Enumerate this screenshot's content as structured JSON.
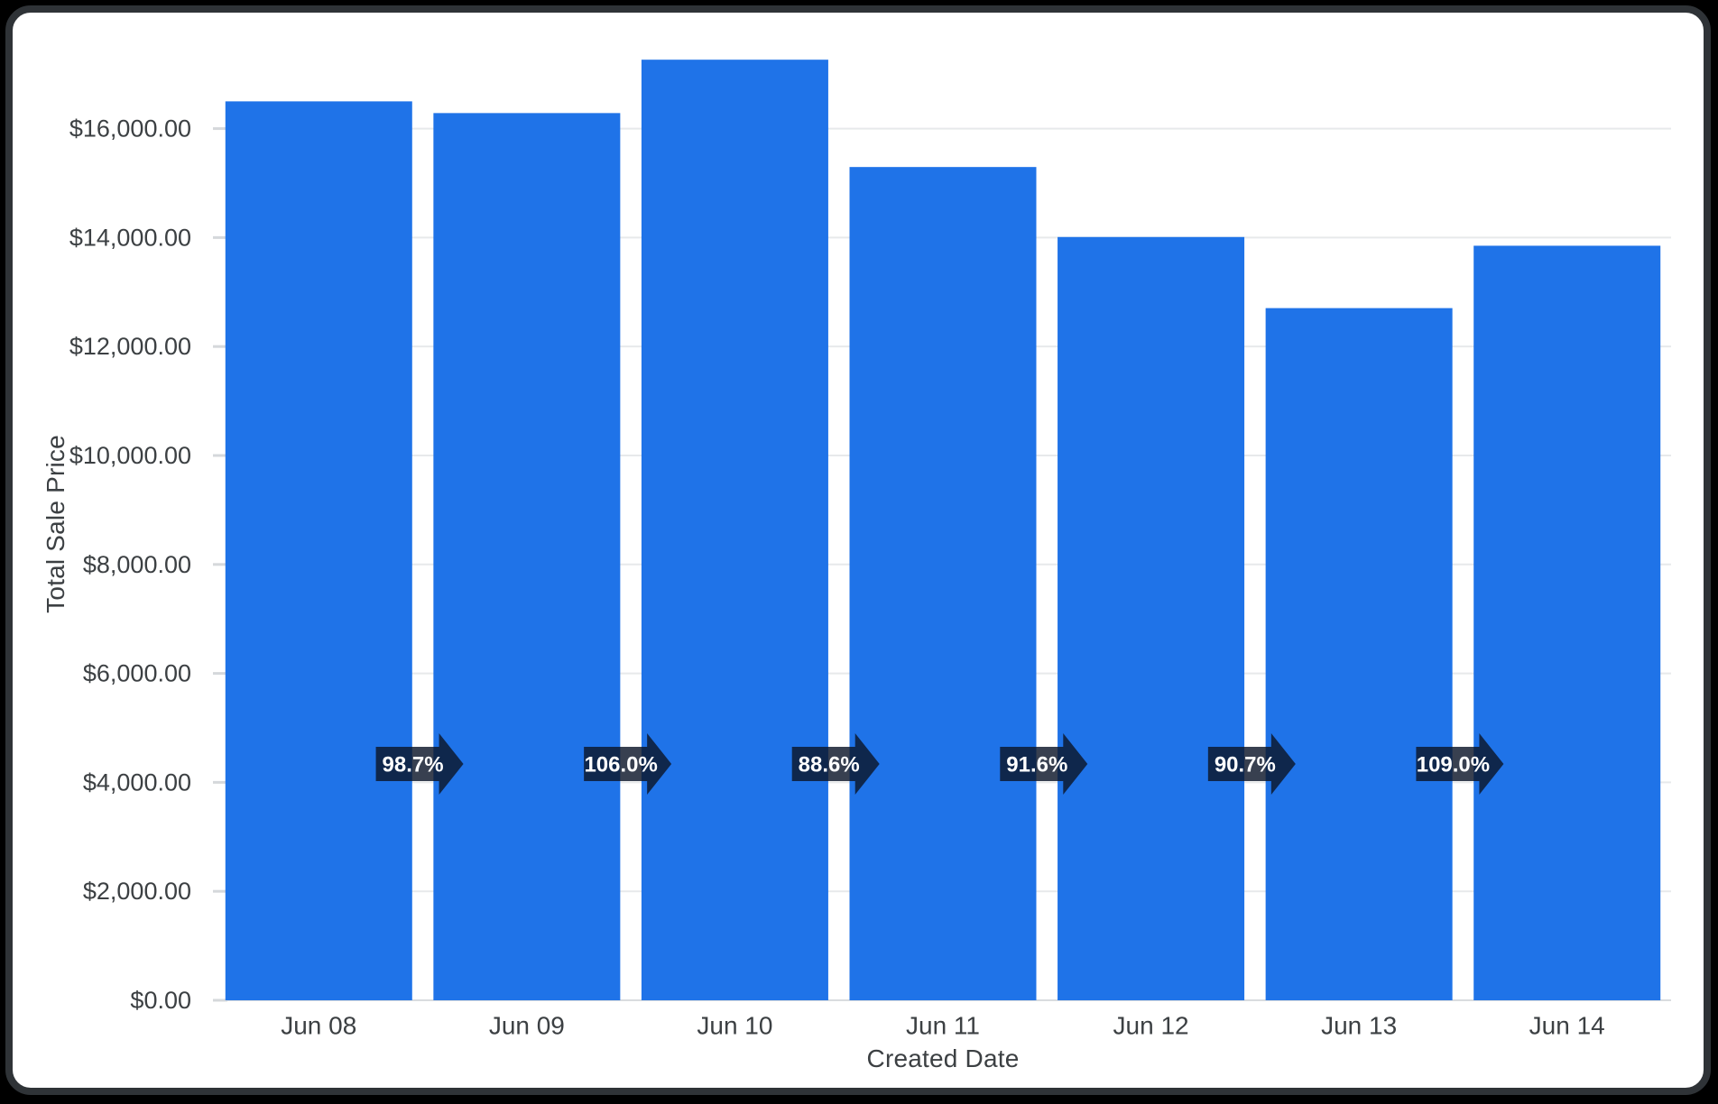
{
  "page": {
    "background": "#000000"
  },
  "card": {
    "background": "#ffffff",
    "border_color": "#2f3337"
  },
  "chart_data": {
    "type": "bar",
    "title": "",
    "xlabel": "Created Date",
    "ylabel": "Total Sale Price",
    "categories": [
      "Jun 08",
      "Jun 09",
      "Jun 10",
      "Jun 11",
      "Jun 12",
      "Jun 13",
      "Jun 14"
    ],
    "series": [
      {
        "name": "Total Sale Price",
        "values": [
          16500,
          16285,
          17265,
          15295,
          14010,
          12705,
          13850
        ]
      }
    ],
    "ylim": [
      0,
      17450
    ],
    "ytick_step": 2000,
    "yticks": [
      {
        "value": 0,
        "label": "$0.00"
      },
      {
        "value": 2000,
        "label": "$2,000.00"
      },
      {
        "value": 4000,
        "label": "$4,000.00"
      },
      {
        "value": 6000,
        "label": "$6,000.00"
      },
      {
        "value": 8000,
        "label": "$8,000.00"
      },
      {
        "value": 10000,
        "label": "$10,000.00"
      },
      {
        "value": 12000,
        "label": "$12,000.00"
      },
      {
        "value": 14000,
        "label": "$14,000.00"
      },
      {
        "value": 16000,
        "label": "$16,000.00"
      }
    ],
    "grid": "horizontal",
    "legend": "none",
    "annotations": [
      {
        "type": "percent-change-arrow",
        "between": [
          "Jun 08",
          "Jun 09"
        ],
        "label": "98.7%"
      },
      {
        "type": "percent-change-arrow",
        "between": [
          "Jun 09",
          "Jun 10"
        ],
        "label": "106.0%"
      },
      {
        "type": "percent-change-arrow",
        "between": [
          "Jun 10",
          "Jun 11"
        ],
        "label": "88.6%"
      },
      {
        "type": "percent-change-arrow",
        "between": [
          "Jun 11",
          "Jun 12"
        ],
        "label": "91.6%"
      },
      {
        "type": "percent-change-arrow",
        "between": [
          "Jun 12",
          "Jun 13"
        ],
        "label": "90.7%"
      },
      {
        "type": "percent-change-arrow",
        "between": [
          "Jun 13",
          "Jun 14"
        ],
        "label": "109.0%"
      }
    ],
    "colors": {
      "bar": "#1f73e8",
      "grid_line": "#e7e9eb",
      "axis_line": "#d9dcdf",
      "tick_mark": "#d5d8db",
      "tick_text": "#3c4043",
      "arrow_fill": "rgba(12,22,42,0.82)",
      "arrow_text": "#ffffff"
    }
  }
}
